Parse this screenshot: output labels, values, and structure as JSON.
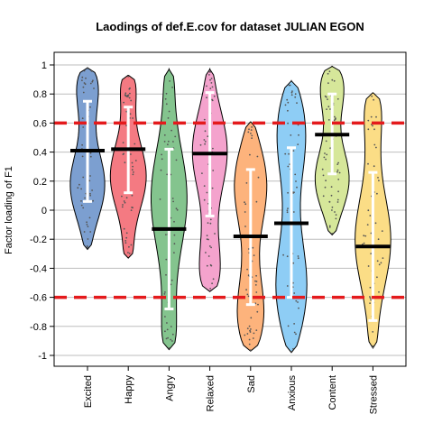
{
  "chart_data": {
    "type": "violin",
    "title": "Laodings of def.E.cov for dataset JULIAN EGON",
    "xlabel": "",
    "ylabel": "Factor loading of F1",
    "ylim": [
      -1.05,
      1.05
    ],
    "yticks": [
      "1",
      "0.8",
      "0.6",
      "0.4",
      "0.2",
      "0",
      "-0.2",
      "-0.4",
      "-0.6",
      "-0.8",
      "-1"
    ],
    "ytick_values": [
      1,
      0.8,
      0.6,
      0.4,
      0.2,
      0,
      -0.2,
      -0.4,
      -0.6,
      -0.8,
      -1
    ],
    "grid": true,
    "reference_lines": [
      0.6,
      -0.6
    ],
    "reference_line_color": "#e41a1c",
    "categories": [
      "Excited",
      "Happy",
      "Angry",
      "Relaxed",
      "Sad",
      "Anxious",
      "Content",
      "Stressed"
    ],
    "series": [
      {
        "category": "Excited",
        "color": "#7c9fd0",
        "min": -0.27,
        "max": 0.98,
        "median": 0.41,
        "mean_minus_sd": 0.06,
        "mean_plus_sd": 0.75
      },
      {
        "category": "Happy",
        "color": "#f47a82",
        "min": -0.33,
        "max": 0.93,
        "median": 0.42,
        "mean_minus_sd": 0.12,
        "mean_plus_sd": 0.71
      },
      {
        "category": "Angry",
        "color": "#84c48e",
        "min": -0.96,
        "max": 0.97,
        "median": -0.13,
        "mean_minus_sd": -0.68,
        "mean_plus_sd": 0.42
      },
      {
        "category": "Relaxed",
        "color": "#f4a3cd",
        "min": -0.56,
        "max": 0.97,
        "median": 0.39,
        "mean_minus_sd": -0.04,
        "mean_plus_sd": 0.81
      },
      {
        "category": "Sad",
        "color": "#fdb37c",
        "min": -0.97,
        "max": 0.61,
        "median": -0.18,
        "mean_minus_sd": -0.65,
        "mean_plus_sd": 0.28
      },
      {
        "category": "Anxious",
        "color": "#8ecdf5",
        "min": -0.98,
        "max": 0.89,
        "median": -0.09,
        "mean_minus_sd": -0.6,
        "mean_plus_sd": 0.43
      },
      {
        "category": "Content",
        "color": "#d6e79a",
        "min": -0.17,
        "max": 0.99,
        "median": 0.52,
        "mean_minus_sd": 0.25,
        "mean_plus_sd": 0.8
      },
      {
        "category": "Stressed",
        "color": "#fbdd86",
        "min": -0.95,
        "max": 0.81,
        "median": -0.25,
        "mean_minus_sd": -0.76,
        "mean_plus_sd": 0.26
      }
    ]
  }
}
